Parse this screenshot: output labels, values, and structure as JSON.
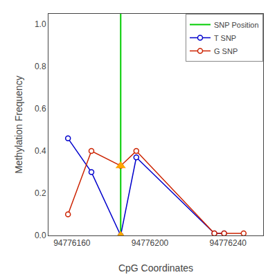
{
  "chart_data": {
    "type": "line",
    "xlabel": "CpG Coordinates",
    "ylabel": "Methylation Frequency",
    "xlim": [
      94776148,
      94776258
    ],
    "ylim": [
      0.0,
      1.05
    ],
    "xticks": [
      94776160,
      94776200,
      94776240
    ],
    "yticks": [
      {
        "value": 0.0,
        "label": "0.0"
      },
      0.2,
      0.4,
      0.6,
      0.8,
      {
        "value": 1.0,
        "label": "1.0"
      }
    ],
    "grid": false,
    "legend": "upper right",
    "series": [
      {
        "name": "SNP Position",
        "type": "vline",
        "color": "#00CC00",
        "x": 94776185
      },
      {
        "name": "T SNP",
        "type": "line",
        "marker": "open circle",
        "color": "#0000CC",
        "x": [
          94776158,
          94776170,
          94776185,
          94776193,
          94776233,
          94776238
        ],
        "values": [
          0.46,
          0.3,
          0.0,
          0.37,
          0.01,
          0.01
        ]
      },
      {
        "name": "G SNP",
        "type": "line",
        "marker": "open circle",
        "color": "#CC2200",
        "x": [
          94776158,
          94776170,
          94776185,
          94776193,
          94776233,
          94776238,
          94776248
        ],
        "values": [
          0.1,
          0.4,
          0.33,
          0.4,
          0.01,
          0.01,
          0.01
        ]
      },
      {
        "type": "scatter",
        "marker": "triangle",
        "color": "#FFA500",
        "x": [
          94776185,
          94776185
        ],
        "values": [
          0.33,
          0.0
        ]
      }
    ]
  }
}
